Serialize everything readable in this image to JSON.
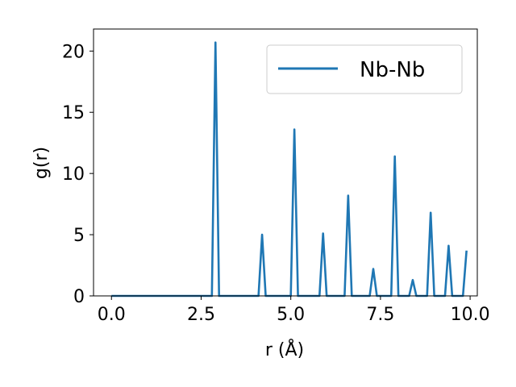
{
  "chart_data": {
    "type": "line",
    "xlabel": "r (Å)",
    "ylabel": "g(r)",
    "xlim": [
      -0.5,
      10.2
    ],
    "ylim": [
      0,
      21.8
    ],
    "xticks": [
      0.0,
      2.5,
      5.0,
      7.5,
      10.0
    ],
    "xtick_labels": [
      "0.0",
      "2.5",
      "5.0",
      "7.5",
      "10.0"
    ],
    "yticks": [
      0,
      5,
      10,
      15,
      20
    ],
    "ytick_labels": [
      "0",
      "5",
      "10",
      "15",
      "20"
    ],
    "grid": false,
    "legend_position": "top-right",
    "series": [
      {
        "name": "Nb-Nb",
        "color": "#1f77b4",
        "x": [
          0.0,
          2.8,
          2.9,
          3.0,
          4.1,
          4.2,
          4.3,
          4.9,
          5.0,
          5.1,
          5.2,
          5.8,
          5.9,
          6.0,
          6.5,
          6.6,
          6.7,
          7.2,
          7.3,
          7.4,
          7.8,
          7.9,
          8.0,
          8.3,
          8.4,
          8.5,
          8.8,
          8.9,
          9.0,
          9.3,
          9.4,
          9.5,
          9.8,
          9.9
        ],
        "y": [
          0,
          0,
          20.7,
          0,
          0,
          5.0,
          0,
          0,
          0,
          13.6,
          0,
          0,
          5.1,
          0,
          0,
          8.2,
          0,
          0,
          2.2,
          0,
          0,
          11.4,
          0,
          0,
          1.3,
          0,
          0,
          6.8,
          0,
          0,
          4.1,
          0,
          0,
          3.7
        ]
      }
    ]
  }
}
